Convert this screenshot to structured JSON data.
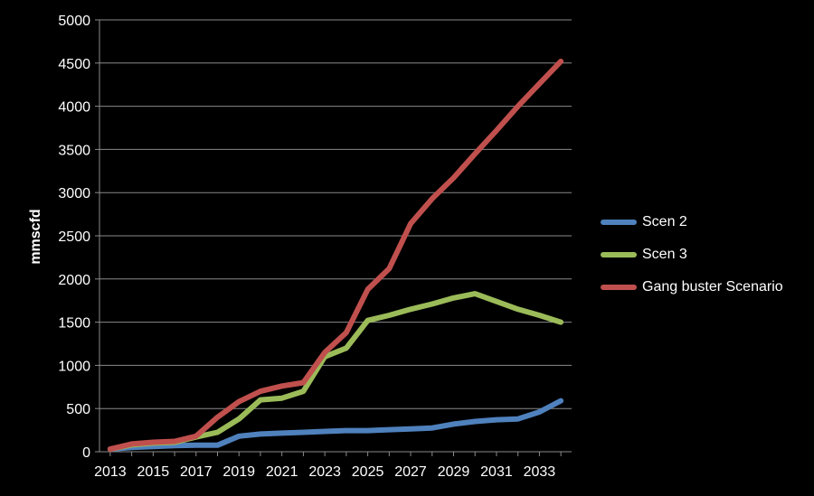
{
  "chart_data": {
    "type": "line",
    "ylabel": "mmscfd",
    "xlabel": "",
    "ylim": [
      0,
      5000
    ],
    "yticks": [
      0,
      500,
      1000,
      1500,
      2000,
      2500,
      3000,
      3500,
      4000,
      4500,
      5000
    ],
    "xlim": [
      2013,
      2034
    ],
    "xticks": [
      2013,
      2015,
      2017,
      2019,
      2021,
      2023,
      2025,
      2027,
      2029,
      2031,
      2033
    ],
    "grid": true,
    "legend_position": "right",
    "x": [
      2013,
      2014,
      2015,
      2016,
      2017,
      2018,
      2019,
      2020,
      2021,
      2022,
      2023,
      2024,
      2025,
      2026,
      2027,
      2028,
      2029,
      2030,
      2031,
      2032,
      2033,
      2034
    ],
    "series": [
      {
        "name": "Scen 2",
        "color": "#4f81bd",
        "values": [
          30,
          50,
          60,
          70,
          75,
          75,
          180,
          205,
          215,
          225,
          235,
          245,
          245,
          255,
          265,
          275,
          320,
          350,
          370,
          380,
          460,
          590
        ]
      },
      {
        "name": "Scen 3",
        "color": "#9bbb59",
        "values": [
          30,
          80,
          100,
          110,
          170,
          225,
          380,
          600,
          620,
          700,
          1100,
          1200,
          1520,
          1580,
          1650,
          1710,
          1780,
          1830,
          1740,
          1650,
          1580,
          1500
        ]
      },
      {
        "name": "Gang buster Scenario",
        "color": "#c0504d",
        "values": [
          30,
          90,
          110,
          120,
          180,
          400,
          580,
          700,
          760,
          800,
          1150,
          1380,
          1880,
          2120,
          2640,
          2930,
          3170,
          3450,
          3720,
          4000,
          4260,
          4520
        ]
      }
    ]
  }
}
